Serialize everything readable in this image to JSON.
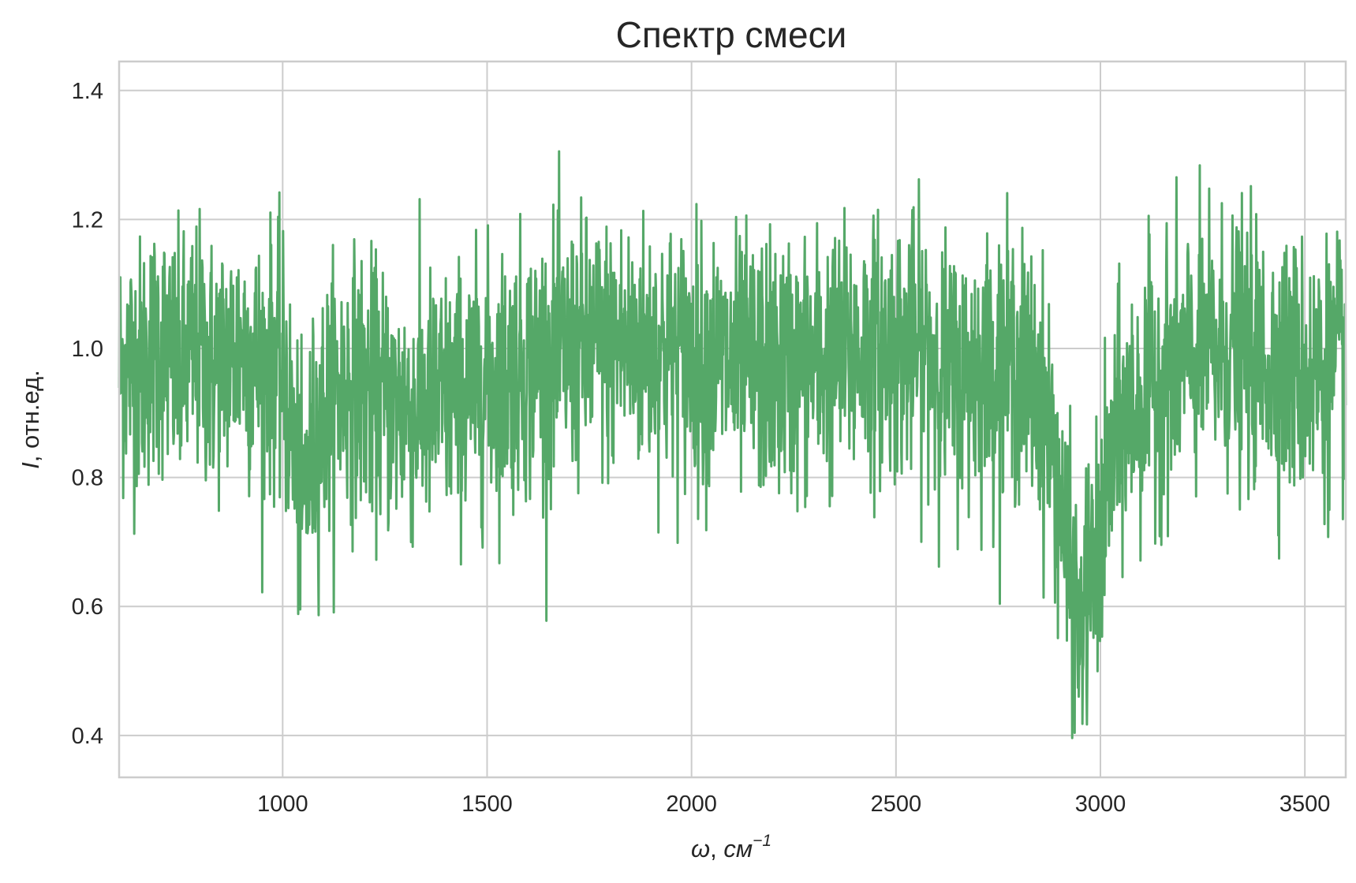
{
  "chart_data": {
    "type": "line",
    "title": "Спектр смеси",
    "xlabel": "ω, см⁻¹",
    "ylabel": "I, отн.ед.",
    "xlabel_symbol": "ω",
    "xlabel_unit": "см",
    "xlabel_exponent": "−1",
    "ylabel_symbol": "I",
    "ylabel_unit": "отн.ед.",
    "xlim": [
      600,
      3600
    ],
    "ylim": [
      0.335,
      1.445
    ],
    "xticks": [
      1000,
      1500,
      2000,
      2500,
      3000,
      3500
    ],
    "xtick_labels": [
      "1000",
      "1500",
      "2000",
      "2500",
      "3000",
      "3500"
    ],
    "yticks": [
      0.4,
      0.6,
      0.8,
      1.0,
      1.2,
      1.4
    ],
    "ytick_labels": [
      "0.4",
      "0.6",
      "0.8",
      "1.0",
      "1.2",
      "1.4"
    ],
    "grid": true,
    "line_color": "#55a868",
    "series": [
      {
        "x": [
          600,
          625,
          650,
          675,
          700,
          725,
          750,
          775,
          800,
          825,
          850,
          875,
          900,
          925,
          950,
          975,
          1000,
          1010,
          1020,
          1030,
          1040,
          1045,
          1050,
          1060,
          1070,
          1080,
          1090,
          1100,
          1125,
          1150,
          1175,
          1200,
          1225,
          1250,
          1275,
          1300,
          1325,
          1350,
          1375,
          1400,
          1425,
          1450,
          1475,
          1500,
          1525,
          1550,
          1575,
          1600,
          1625,
          1650,
          1675,
          1700,
          1725,
          1750,
          1775,
          1800,
          1825,
          1850,
          1875,
          1900,
          1925,
          1950,
          1975,
          2000,
          2025,
          2050,
          2075,
          2100,
          2125,
          2150,
          2175,
          2200,
          2225,
          2250,
          2275,
          2300,
          2325,
          2350,
          2375,
          2400,
          2425,
          2450,
          2475,
          2500,
          2525,
          2550,
          2575,
          2600,
          2625,
          2650,
          2675,
          2700,
          2725,
          2750,
          2775,
          2800,
          2825,
          2850,
          2860,
          2870,
          2880,
          2890,
          2900,
          2910,
          2920,
          2930,
          2940,
          2950,
          2960,
          2970,
          2980,
          2990,
          3000,
          3010,
          3020,
          3030,
          3040,
          3050,
          3060,
          3075,
          3100,
          3125,
          3150,
          3175,
          3200,
          3225,
          3250,
          3275,
          3300,
          3325,
          3350,
          3375,
          3400,
          3425,
          3450,
          3475,
          3500,
          3525,
          3550,
          3575,
          3600
        ],
        "y": [
          0.97,
          0.98,
          0.97,
          0.99,
          1.01,
          0.98,
          0.96,
          0.99,
          1.0,
          0.97,
          0.98,
          0.99,
          1.01,
          0.98,
          0.97,
          0.99,
          0.96,
          0.92,
          0.88,
          0.84,
          0.78,
          0.74,
          0.76,
          0.8,
          0.83,
          0.86,
          0.88,
          0.9,
          0.93,
          0.94,
          0.95,
          0.94,
          0.93,
          0.92,
          0.91,
          0.91,
          0.9,
          0.91,
          0.92,
          0.92,
          0.93,
          0.93,
          0.94,
          0.95,
          0.95,
          0.96,
          0.97,
          0.97,
          0.98,
          0.98,
          0.99,
          0.99,
          1.0,
          1.0,
          1.0,
          1.0,
          1.01,
          1.0,
          1.0,
          1.0,
          1.0,
          0.99,
          0.99,
          0.99,
          0.98,
          0.98,
          0.98,
          0.97,
          0.97,
          0.97,
          0.97,
          0.97,
          0.97,
          0.97,
          0.97,
          0.98,
          0.98,
          0.98,
          0.99,
          0.99,
          1.0,
          1.0,
          1.0,
          1.0,
          1.0,
          1.0,
          1.0,
          0.98,
          0.96,
          0.95,
          0.96,
          0.97,
          0.97,
          0.98,
          0.98,
          0.97,
          0.96,
          0.93,
          0.91,
          0.88,
          0.85,
          0.82,
          0.77,
          0.72,
          0.66,
          0.62,
          0.61,
          0.6,
          0.61,
          0.62,
          0.64,
          0.67,
          0.7,
          0.74,
          0.79,
          0.83,
          0.86,
          0.88,
          0.89,
          0.9,
          0.92,
          0.94,
          0.96,
          0.97,
          0.98,
          0.98,
          0.99,
          0.99,
          1.0,
          1.0,
          0.99,
          0.99,
          0.98,
          0.98,
          0.97,
          0.97,
          0.96,
          0.96,
          0.96,
          0.97,
          0.97
        ]
      }
    ]
  }
}
